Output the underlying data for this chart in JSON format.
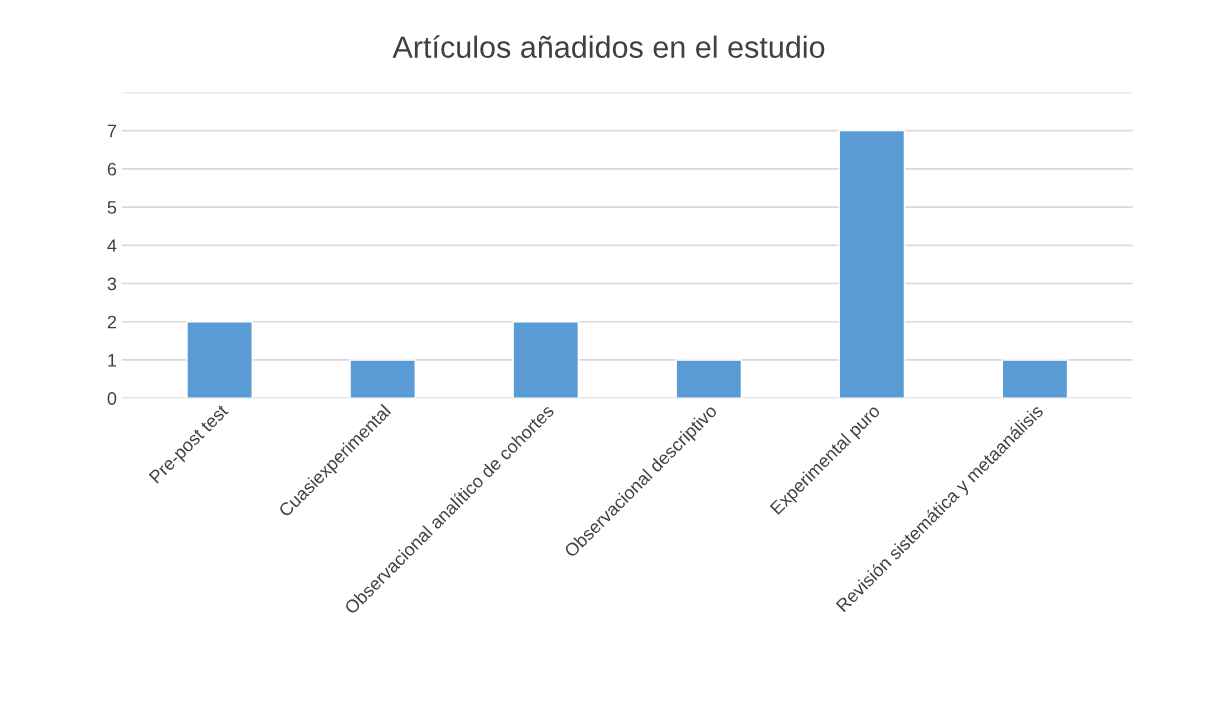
{
  "chart_data": {
    "type": "bar",
    "title": "Artículos añadidos en el estudio",
    "categories": [
      "Pre-post test",
      "Cuasiexperimental",
      "Observacional analítico de cohortes",
      "Observacional descriptivo",
      "Experimental puro",
      "Revisión sistemática y metaanálisis"
    ],
    "values": [
      2,
      1,
      2,
      1,
      7,
      1
    ],
    "color": "#5b9bd5",
    "ylim": [
      0,
      8
    ],
    "yticks": [
      0,
      1,
      2,
      3,
      4,
      5,
      6,
      7,
      {
        "value": 8,
        "label": null
      }
    ],
    "grid": "y",
    "legend": false
  }
}
